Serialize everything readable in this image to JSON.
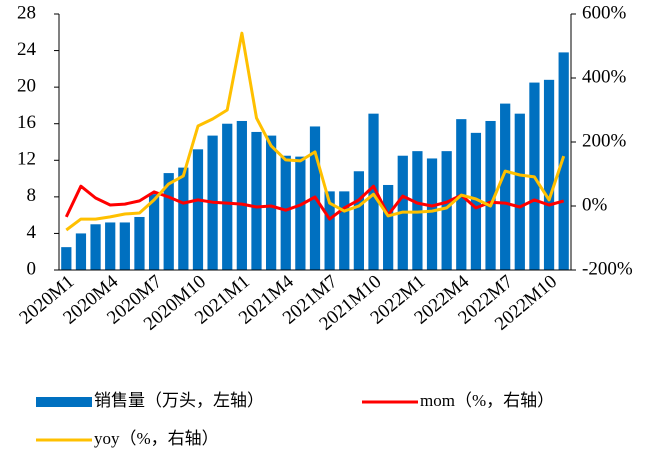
{
  "chart_data": {
    "type": "bar",
    "categories": [
      "2020M1",
      null,
      null,
      "2020M4",
      null,
      null,
      "2020M7",
      null,
      null,
      "2020M10",
      null,
      null,
      "2021M1",
      null,
      null,
      "2021M4",
      null,
      null,
      "2021M7",
      null,
      null,
      "2021M10",
      null,
      null,
      "2022M1",
      null,
      null,
      "2022M4",
      null,
      null,
      "2022M7",
      null,
      null,
      "2022M10",
      null
    ],
    "series": [
      {
        "name": "销售量（万头，左轴）",
        "color": "#0070c0",
        "type": "bar",
        "axis": "y",
        "values": [
          2.5,
          4.0,
          5.0,
          5.2,
          5.2,
          5.8,
          8.3,
          10.6,
          11.2,
          13.2,
          14.7,
          16.0,
          16.3,
          15.1,
          14.7,
          12.5,
          12.4,
          15.7,
          8.6,
          8.6,
          10.8,
          17.1,
          9.3,
          12.5,
          13.0,
          12.2,
          13.0,
          16.5,
          15.0,
          16.3,
          18.2,
          17.1,
          20.5,
          20.8,
          23.8
        ]
      },
      {
        "name": "mom（%，右轴）",
        "color": "#ff0000",
        "type": "line",
        "axis": "y2",
        "values": [
          -34,
          62,
          25,
          3,
          6,
          16,
          44,
          28,
          9,
          19,
          12,
          9,
          6,
          -3,
          0,
          -13,
          3,
          28,
          -41,
          -6,
          19,
          62,
          -28,
          31,
          9,
          0,
          12,
          34,
          -6,
          12,
          9,
          -3,
          19,
          3,
          16
        ]
      },
      {
        "name": "yoy（%，右轴）",
        "color": "#ffc000",
        "type": "line",
        "axis": "y2",
        "values": [
          -75,
          -41,
          -41,
          -34,
          -25,
          -22,
          19,
          69,
          94,
          250,
          272,
          300,
          540,
          275,
          188,
          144,
          141,
          169,
          9,
          -16,
          0,
          37,
          -31,
          -19,
          -19,
          -16,
          -6,
          34,
          22,
          0,
          109,
          97,
          91,
          19,
          156
        ]
      }
    ],
    "ylim": [
      0,
      28
    ],
    "yticks": [
      0,
      4,
      8,
      12,
      16,
      20,
      24,
      28
    ],
    "y2lim": [
      -200,
      600
    ],
    "y2ticks": [
      {
        "value": -200,
        "label": "-200%"
      },
      {
        "value": 0,
        "label": "0%"
      },
      {
        "value": 200,
        "label": "200%"
      },
      {
        "value": 400,
        "label": "400%"
      },
      {
        "value": 600,
        "label": "600%"
      }
    ],
    "legend": "bottom"
  }
}
